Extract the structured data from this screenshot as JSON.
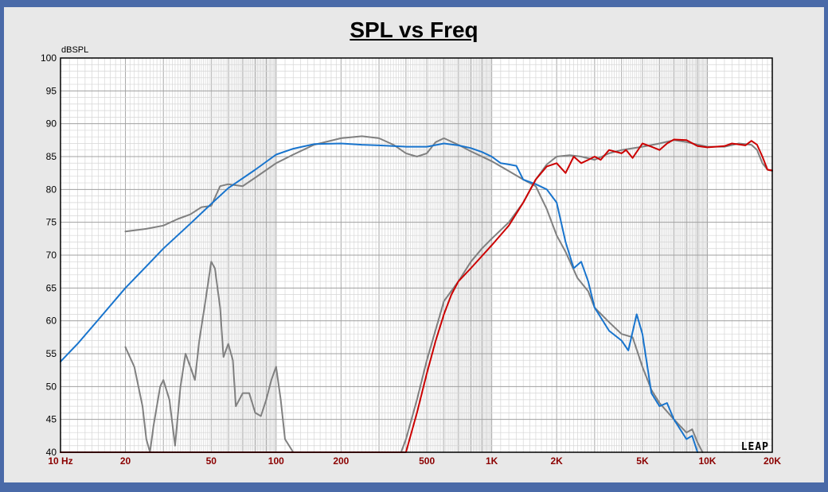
{
  "chart_data": {
    "type": "line",
    "title": "SPL vs Freq",
    "ylabel": "dBSPL",
    "xscale": "log",
    "xlim": [
      10,
      20000
    ],
    "ylim": [
      40,
      100
    ],
    "grid": true,
    "yticks": [
      100,
      95,
      90,
      85,
      80,
      75,
      70,
      65,
      60,
      55,
      50,
      45,
      40
    ],
    "xticks": [
      {
        "value": 10,
        "label": "10  Hz"
      },
      {
        "value": 20,
        "label": "20"
      },
      {
        "value": 50,
        "label": "50"
      },
      {
        "value": 100,
        "label": "100"
      },
      {
        "value": 200,
        "label": "200"
      },
      {
        "value": 500,
        "label": "500"
      },
      {
        "value": 1000,
        "label": "1K"
      },
      {
        "value": 2000,
        "label": "2K"
      },
      {
        "value": 5000,
        "label": "5K"
      },
      {
        "value": 10000,
        "label": "10K"
      },
      {
        "value": 20000,
        "label": "20K"
      }
    ],
    "watermark": "LEAP",
    "series": [
      {
        "color": "#808080",
        "points": [
          [
            20,
            73.6
          ],
          [
            25,
            74
          ],
          [
            30,
            74.5
          ],
          [
            35,
            75.5
          ],
          [
            40,
            76.2
          ],
          [
            45,
            77.3
          ],
          [
            50,
            77.5
          ],
          [
            55,
            80.5
          ],
          [
            60,
            80.8
          ],
          [
            70,
            80.5
          ],
          [
            80,
            81.8
          ],
          [
            100,
            84
          ],
          [
            120,
            85.3
          ],
          [
            150,
            86.8
          ],
          [
            200,
            87.8
          ],
          [
            250,
            88.1
          ],
          [
            300,
            87.8
          ],
          [
            350,
            86.8
          ],
          [
            400,
            85.5
          ],
          [
            450,
            85
          ],
          [
            500,
            85.5
          ],
          [
            550,
            87.2
          ],
          [
            600,
            87.8
          ],
          [
            700,
            86.8
          ],
          [
            800,
            85.8
          ],
          [
            1000,
            84.3
          ],
          [
            1200,
            82.8
          ],
          [
            1400,
            81.5
          ],
          [
            1600,
            80.5
          ],
          [
            1800,
            77
          ],
          [
            2000,
            73
          ],
          [
            2200,
            70.5
          ],
          [
            2500,
            66.5
          ],
          [
            2800,
            64.5
          ],
          [
            3000,
            62
          ],
          [
            3500,
            59.8
          ],
          [
            4000,
            58
          ],
          [
            4500,
            57.5
          ],
          [
            5000,
            53
          ],
          [
            5500,
            49.5
          ],
          [
            6000,
            47.5
          ],
          [
            7000,
            45
          ],
          [
            8000,
            43
          ],
          [
            8500,
            43.5
          ],
          [
            9000,
            41.5
          ],
          [
            9500,
            40
          ]
        ]
      },
      {
        "color": "#808080",
        "points": [
          [
            20,
            56
          ],
          [
            22,
            53
          ],
          [
            24,
            47
          ],
          [
            25,
            42
          ],
          [
            26,
            40
          ],
          [
            27,
            44
          ],
          [
            29,
            50
          ],
          [
            30,
            51
          ],
          [
            32,
            48
          ],
          [
            34,
            41
          ],
          [
            36,
            50
          ],
          [
            38,
            55
          ],
          [
            40,
            53
          ],
          [
            42,
            51
          ],
          [
            44,
            57
          ],
          [
            47,
            63
          ],
          [
            50,
            69
          ],
          [
            52,
            68
          ],
          [
            55,
            62
          ],
          [
            57,
            54.5
          ],
          [
            60,
            56.5
          ],
          [
            63,
            54
          ],
          [
            65,
            47
          ],
          [
            70,
            49
          ],
          [
            75,
            49
          ],
          [
            80,
            46
          ],
          [
            85,
            45.5
          ],
          [
            90,
            48
          ],
          [
            95,
            51
          ],
          [
            100,
            53
          ],
          [
            105,
            48
          ],
          [
            110,
            42
          ],
          [
            120,
            40
          ]
        ]
      },
      {
        "color": "#808080",
        "points": [
          [
            380,
            40
          ],
          [
            400,
            42
          ],
          [
            450,
            48
          ],
          [
            500,
            54
          ],
          [
            600,
            63
          ],
          [
            700,
            66
          ],
          [
            800,
            69
          ],
          [
            900,
            71
          ],
          [
            1000,
            72.5
          ],
          [
            1200,
            75
          ],
          [
            1400,
            78
          ],
          [
            1600,
            81.5
          ],
          [
            1800,
            83.8
          ],
          [
            2000,
            85
          ],
          [
            2300,
            85.2
          ],
          [
            2600,
            85
          ],
          [
            3000,
            84.5
          ],
          [
            3500,
            85.5
          ],
          [
            4000,
            86
          ],
          [
            5000,
            86.5
          ],
          [
            6000,
            87
          ],
          [
            7000,
            87.5
          ],
          [
            8000,
            87.2
          ],
          [
            10000,
            86.5
          ],
          [
            12000,
            86.5
          ],
          [
            14000,
            87
          ],
          [
            16000,
            86.8
          ],
          [
            17000,
            86
          ],
          [
            18000,
            84
          ],
          [
            19000,
            83
          ],
          [
            20000,
            82.8
          ]
        ]
      },
      {
        "color": "#1874cd",
        "points": [
          [
            10,
            53.8
          ],
          [
            12,
            56.5
          ],
          [
            15,
            60.2
          ],
          [
            20,
            65
          ],
          [
            25,
            68.3
          ],
          [
            30,
            71
          ],
          [
            40,
            74.8
          ],
          [
            50,
            77.8
          ],
          [
            60,
            80.2
          ],
          [
            80,
            83
          ],
          [
            100,
            85.3
          ],
          [
            120,
            86.2
          ],
          [
            150,
            86.9
          ],
          [
            200,
            87
          ],
          [
            250,
            86.8
          ],
          [
            300,
            86.7
          ],
          [
            400,
            86.5
          ],
          [
            500,
            86.5
          ],
          [
            600,
            87
          ],
          [
            700,
            86.7
          ],
          [
            800,
            86.3
          ],
          [
            900,
            85.7
          ],
          [
            1000,
            85
          ],
          [
            1100,
            84
          ],
          [
            1200,
            83.8
          ],
          [
            1300,
            83.6
          ],
          [
            1400,
            81.5
          ],
          [
            1600,
            80.8
          ],
          [
            1800,
            80
          ],
          [
            2000,
            78
          ],
          [
            2200,
            72
          ],
          [
            2400,
            68
          ],
          [
            2600,
            69
          ],
          [
            2800,
            66
          ],
          [
            3000,
            62
          ],
          [
            3500,
            58.5
          ],
          [
            4000,
            57
          ],
          [
            4300,
            55.5
          ],
          [
            4700,
            61
          ],
          [
            5000,
            58
          ],
          [
            5500,
            49
          ],
          [
            6000,
            47
          ],
          [
            6500,
            47.5
          ],
          [
            7000,
            45
          ],
          [
            8000,
            42
          ],
          [
            8500,
            42.5
          ],
          [
            9000,
            40
          ]
        ]
      },
      {
        "color": "#cc0000",
        "points": [
          [
            10,
            40
          ],
          [
            400,
            40
          ],
          [
            450,
            46
          ],
          [
            500,
            52
          ],
          [
            550,
            57
          ],
          [
            600,
            61
          ],
          [
            650,
            64
          ],
          [
            700,
            66
          ],
          [
            800,
            68
          ],
          [
            1000,
            71.5
          ],
          [
            1200,
            74.5
          ],
          [
            1400,
            78
          ],
          [
            1600,
            81.5
          ],
          [
            1800,
            83.5
          ],
          [
            2000,
            84
          ],
          [
            2200,
            82.5
          ],
          [
            2400,
            85
          ],
          [
            2600,
            84
          ],
          [
            2800,
            84.5
          ],
          [
            3000,
            85
          ],
          [
            3200,
            84.5
          ],
          [
            3500,
            86
          ],
          [
            4000,
            85.5
          ],
          [
            4200,
            86
          ],
          [
            4500,
            84.8
          ],
          [
            5000,
            87
          ],
          [
            5500,
            86.5
          ],
          [
            6000,
            86
          ],
          [
            6500,
            87
          ],
          [
            7000,
            87.6
          ],
          [
            8000,
            87.5
          ],
          [
            9000,
            86.6
          ],
          [
            10000,
            86.4
          ],
          [
            12000,
            86.6
          ],
          [
            13000,
            87
          ],
          [
            15000,
            86.7
          ],
          [
            16000,
            87.4
          ],
          [
            17000,
            86.8
          ],
          [
            18000,
            85
          ],
          [
            19000,
            83
          ],
          [
            20000,
            82.9
          ]
        ]
      }
    ]
  }
}
